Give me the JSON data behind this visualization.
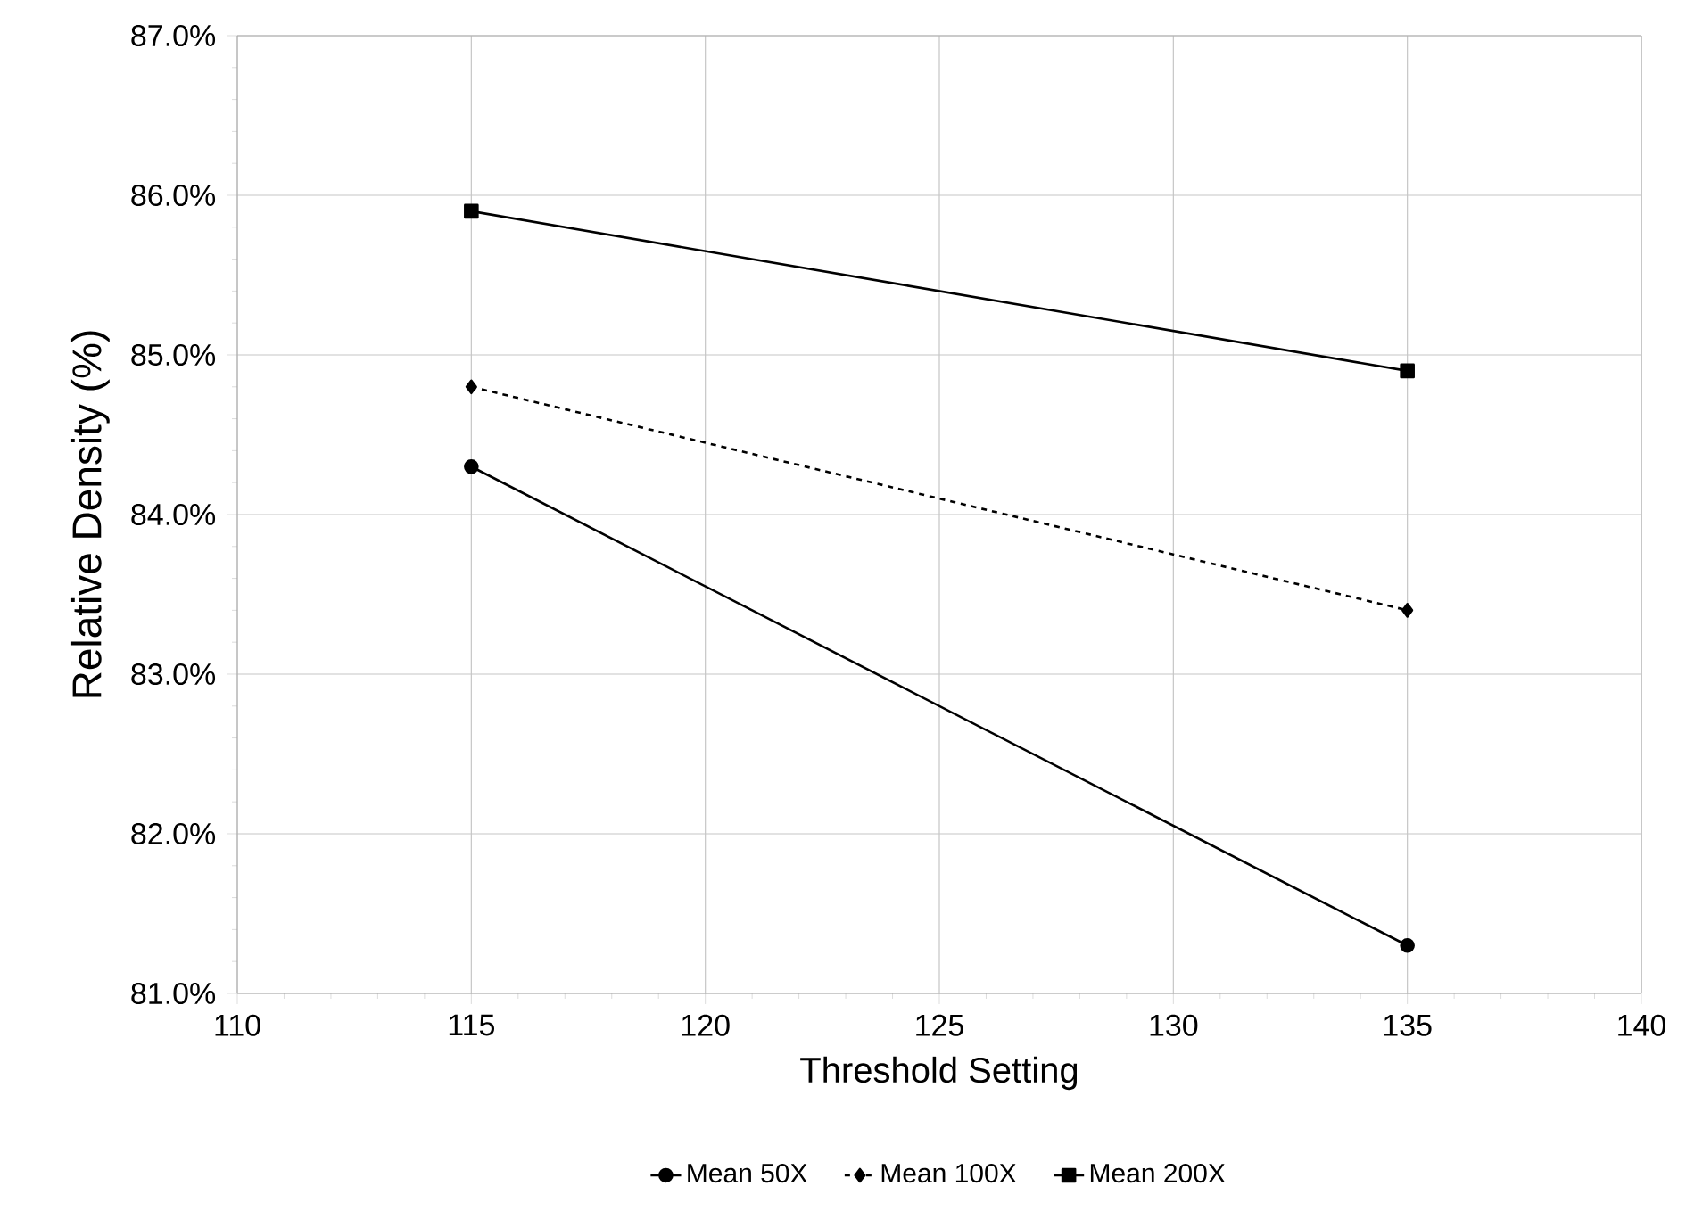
{
  "chart_data": {
    "type": "line",
    "xlabel": "Threshold Setting",
    "ylabel": "Relative Density (%)",
    "x": [
      115,
      135
    ],
    "series": [
      {
        "name": "Mean 50X",
        "color": "#000000",
        "values": [
          84.3,
          81.3
        ],
        "marker": "circle",
        "line_style": "solid"
      },
      {
        "name": "Mean 100X",
        "color": "#000000",
        "values": [
          84.8,
          83.4
        ],
        "marker": "diamond",
        "line_style": "dashed"
      },
      {
        "name": "Mean 200X",
        "color": "#000000",
        "values": [
          85.9,
          84.9
        ],
        "marker": "square",
        "line_style": "solid"
      }
    ],
    "xlim": [
      110,
      140
    ],
    "xticks": [
      110,
      115,
      120,
      125,
      130,
      135,
      140
    ],
    "ylim": [
      81.0,
      87.0
    ],
    "yticks": [
      {
        "value": 81.0,
        "label": "81.0%"
      },
      {
        "value": 82.0,
        "label": "82.0%"
      },
      {
        "value": 83.0,
        "label": "83.0%"
      },
      {
        "value": 84.0,
        "label": "84.0%"
      },
      {
        "value": 85.0,
        "label": "85.0%"
      },
      {
        "value": 86.0,
        "label": "86.0%"
      },
      {
        "value": 87.0,
        "label": "87.0%"
      }
    ],
    "grid": true,
    "legend": "bottom"
  }
}
